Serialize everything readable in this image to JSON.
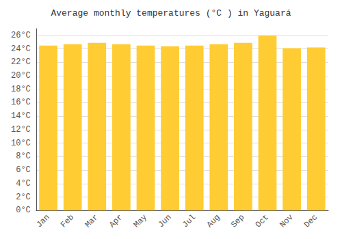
{
  "chart_data": {
    "type": "bar",
    "title": "Average monthly temperatures (°C ) in Yaguará",
    "categories": [
      "Jan",
      "Feb",
      "Mar",
      "Apr",
      "May",
      "Jun",
      "Jul",
      "Aug",
      "Sep",
      "Oct",
      "Nov",
      "Dec"
    ],
    "values": [
      24.5,
      24.7,
      24.9,
      24.7,
      24.5,
      24.4,
      24.5,
      24.7,
      24.9,
      26.0,
      24.1,
      24.2
    ],
    "color": "#FFCC33",
    "ylim": [
      0,
      27
    ],
    "yticks": [
      {
        "value": 0,
        "label": "0°C"
      },
      {
        "value": 2,
        "label": "2°C"
      },
      {
        "value": 4,
        "label": "4°C"
      },
      {
        "value": 6,
        "label": "6°C"
      },
      {
        "value": 8,
        "label": "8°C"
      },
      {
        "value": 10,
        "label": "10°C"
      },
      {
        "value": 12,
        "label": "12°C"
      },
      {
        "value": 14,
        "label": "14°C"
      },
      {
        "value": 16,
        "label": "16°C"
      },
      {
        "value": 18,
        "label": "18°C"
      },
      {
        "value": 20,
        "label": "20°C"
      },
      {
        "value": 22,
        "label": "22°C"
      },
      {
        "value": 24,
        "label": "24°C"
      },
      {
        "value": 26,
        "label": "26°C"
      }
    ],
    "grid": true
  }
}
